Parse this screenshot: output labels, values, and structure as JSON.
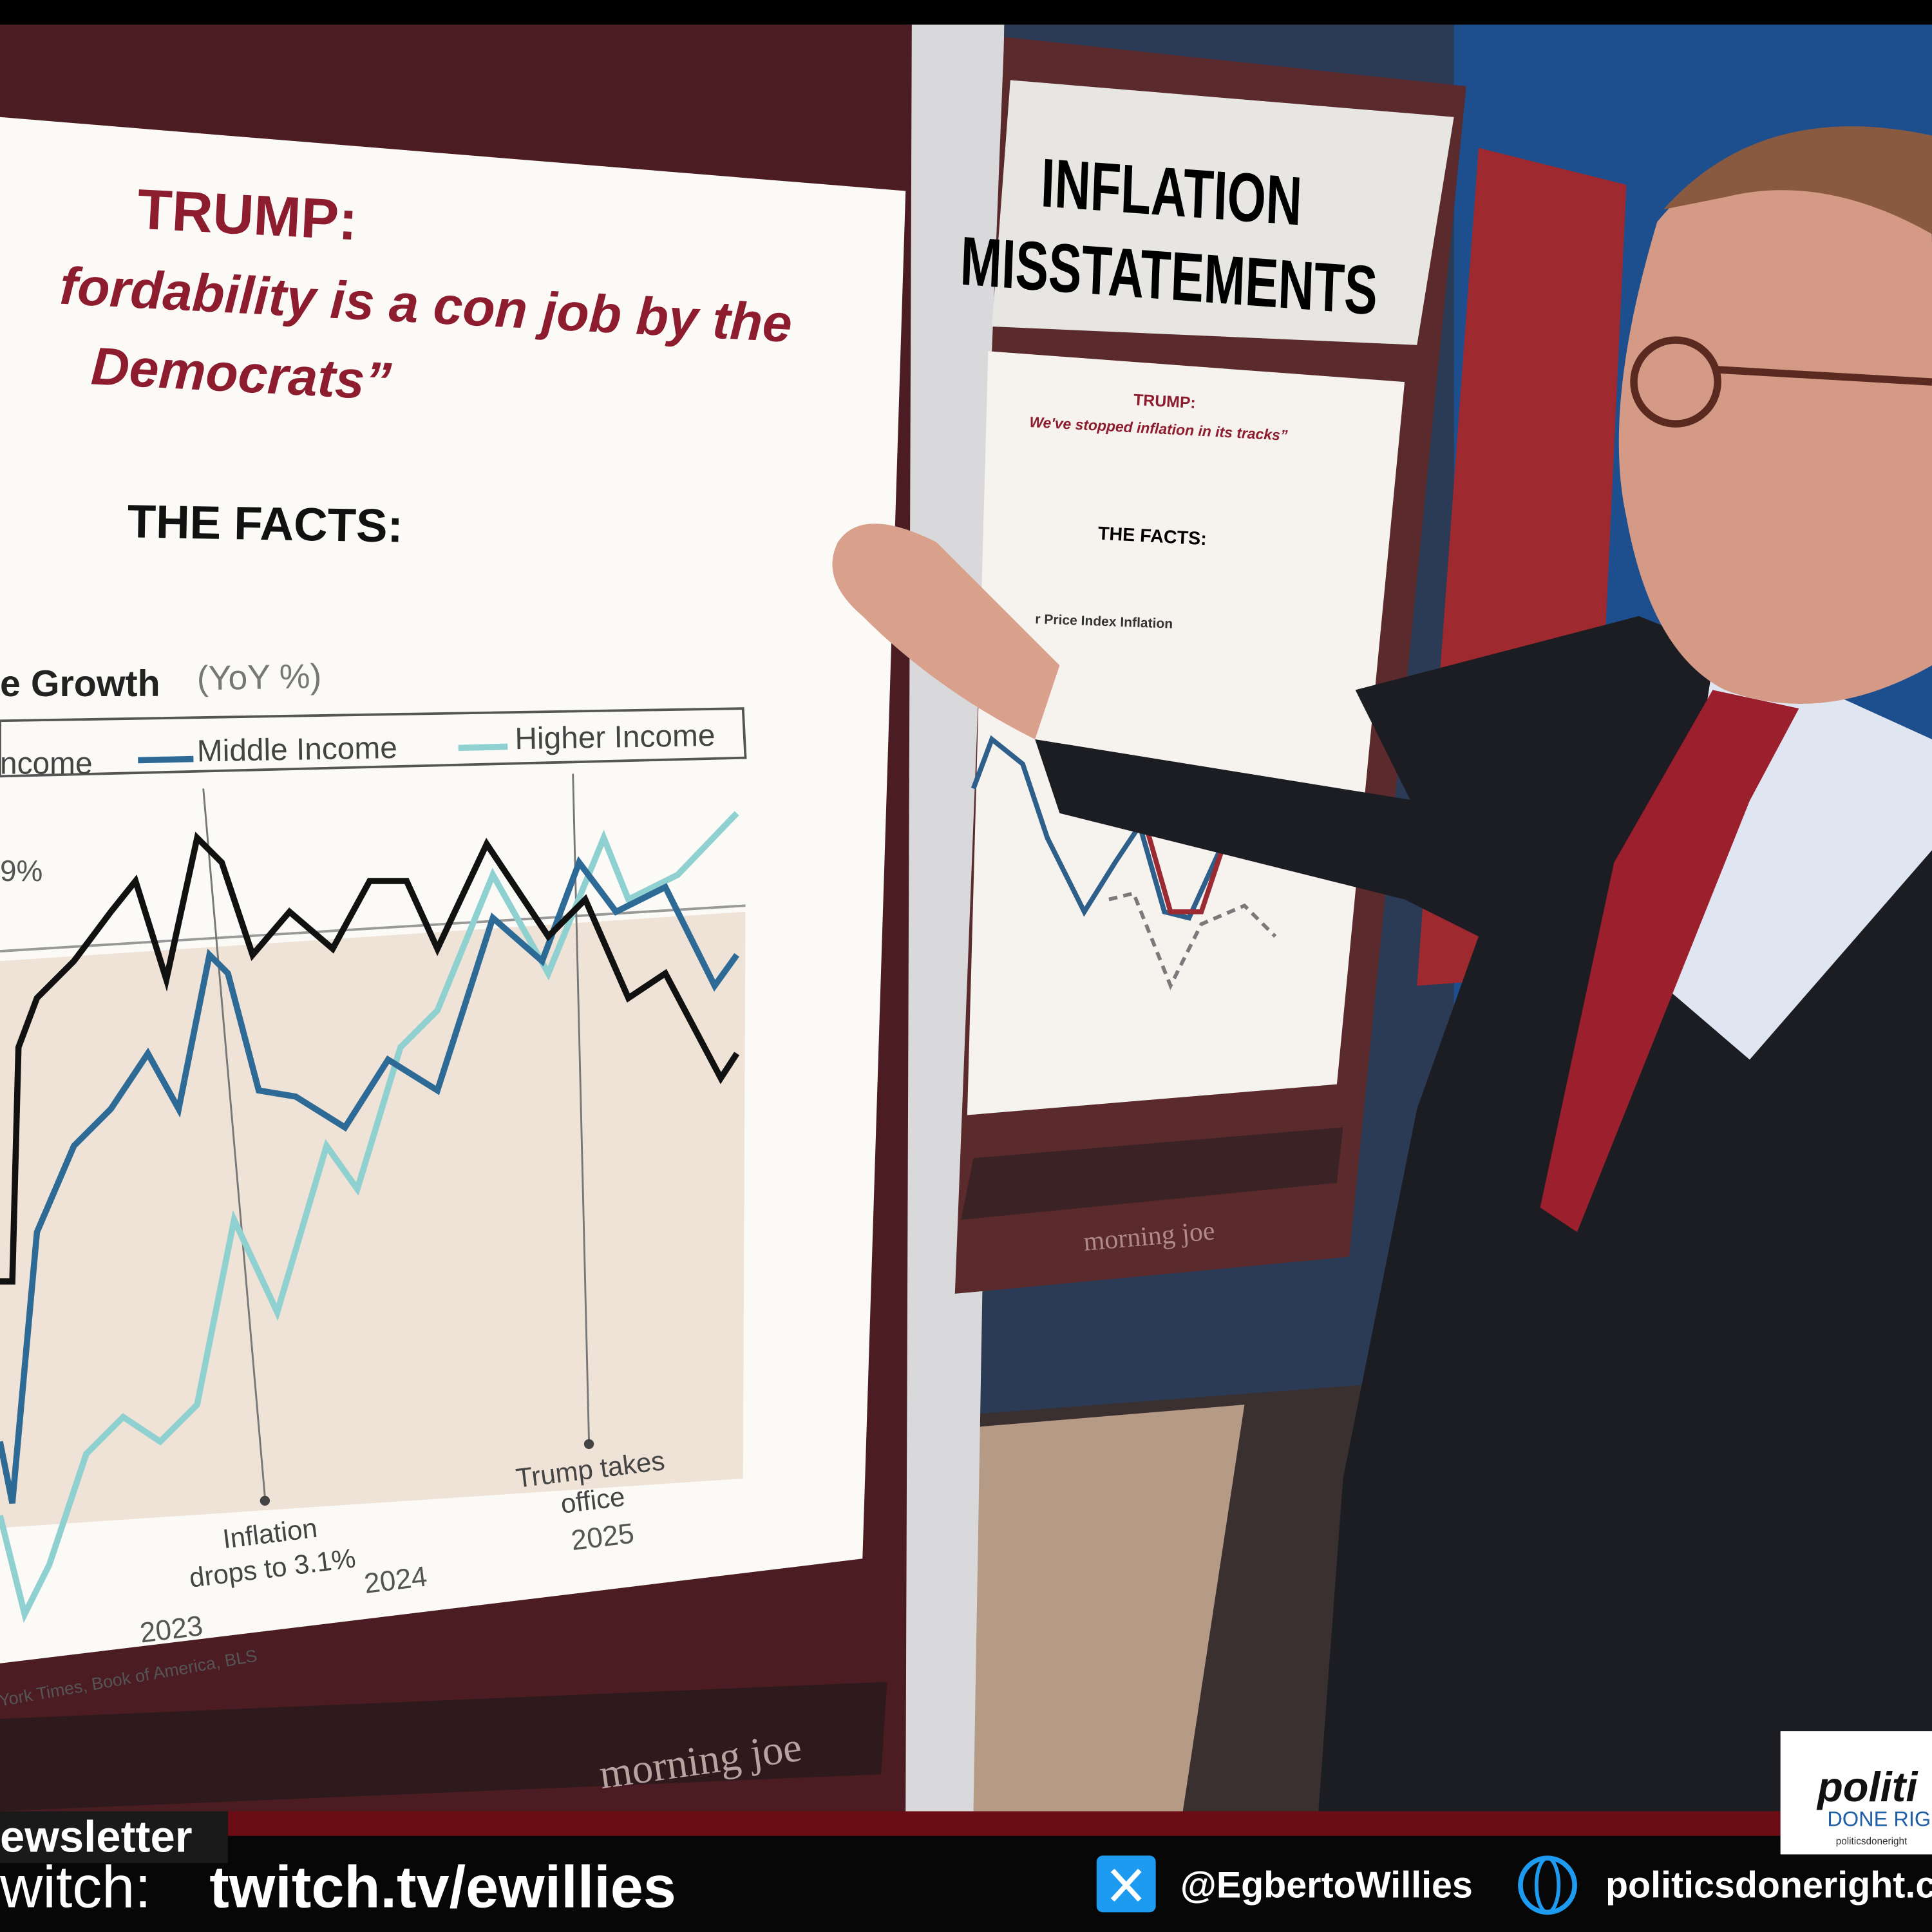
{
  "main_board": {
    "speaker": "TRUMP:",
    "quote": [
      "fordability is a con job by the",
      "Democrats”"
    ],
    "facts": "THE FACTS:",
    "chart": {
      "title": "e Growth",
      "unit": "(YoY %)",
      "legend": [
        "ncome",
        "Middle Income",
        "Higher Income"
      ],
      "side_note": [
        "9%"
      ],
      "annotations": [
        [
          "Inflation",
          "drops to 3.1%"
        ],
        [
          "Trump takes",
          "office"
        ]
      ],
      "years": [
        "2023",
        "2024",
        "2025"
      ],
      "source": "York Times, Book of America, BLS"
    },
    "footer": "morning joe"
  },
  "side_board": {
    "title": [
      "INFLATION",
      "MISSTATEMENTS"
    ],
    "speaker": "TRUMP:",
    "quote": "We've stopped inflation in its tracks”",
    "facts": "THE FACTS:",
    "chart_title": "r Price Index Inflation",
    "footer": "morning joe"
  },
  "ticker": {
    "newsletter": "ewsletter",
    "twitch_label": "witch:",
    "twitch_url": "twitch.tv/ewillies",
    "x_handle": "@EgbertoWillies",
    "website": "politicsdoneright.co"
  },
  "logo": {
    "line1": "politi",
    "line2": "DONE RIG",
    "line3": "politicsdoneright"
  }
}
